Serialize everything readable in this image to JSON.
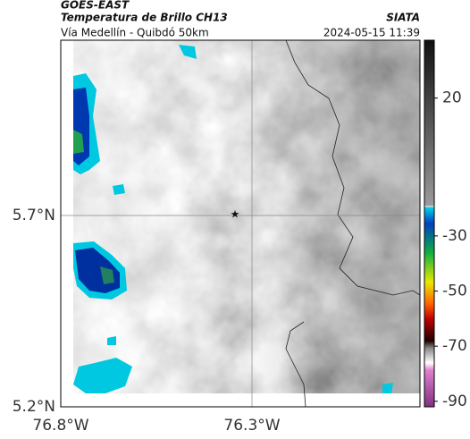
{
  "header": {
    "source": "GOES-EAST",
    "product": "Temperatura de Brillo CH13",
    "location": "Vía Medellín - Quibdó 50km",
    "org": "SIATA",
    "timestamp": "2024-05-15 11:39"
  },
  "map": {
    "lat_labels": [
      "5.7°N",
      "5.2°N"
    ],
    "lon_labels": [
      "76.8°W",
      "76.3°W"
    ]
  },
  "colorbar": {
    "lim": [
      41,
      -92
    ],
    "ticks": [
      20,
      -30,
      -50,
      -70,
      -90
    ]
  }
}
